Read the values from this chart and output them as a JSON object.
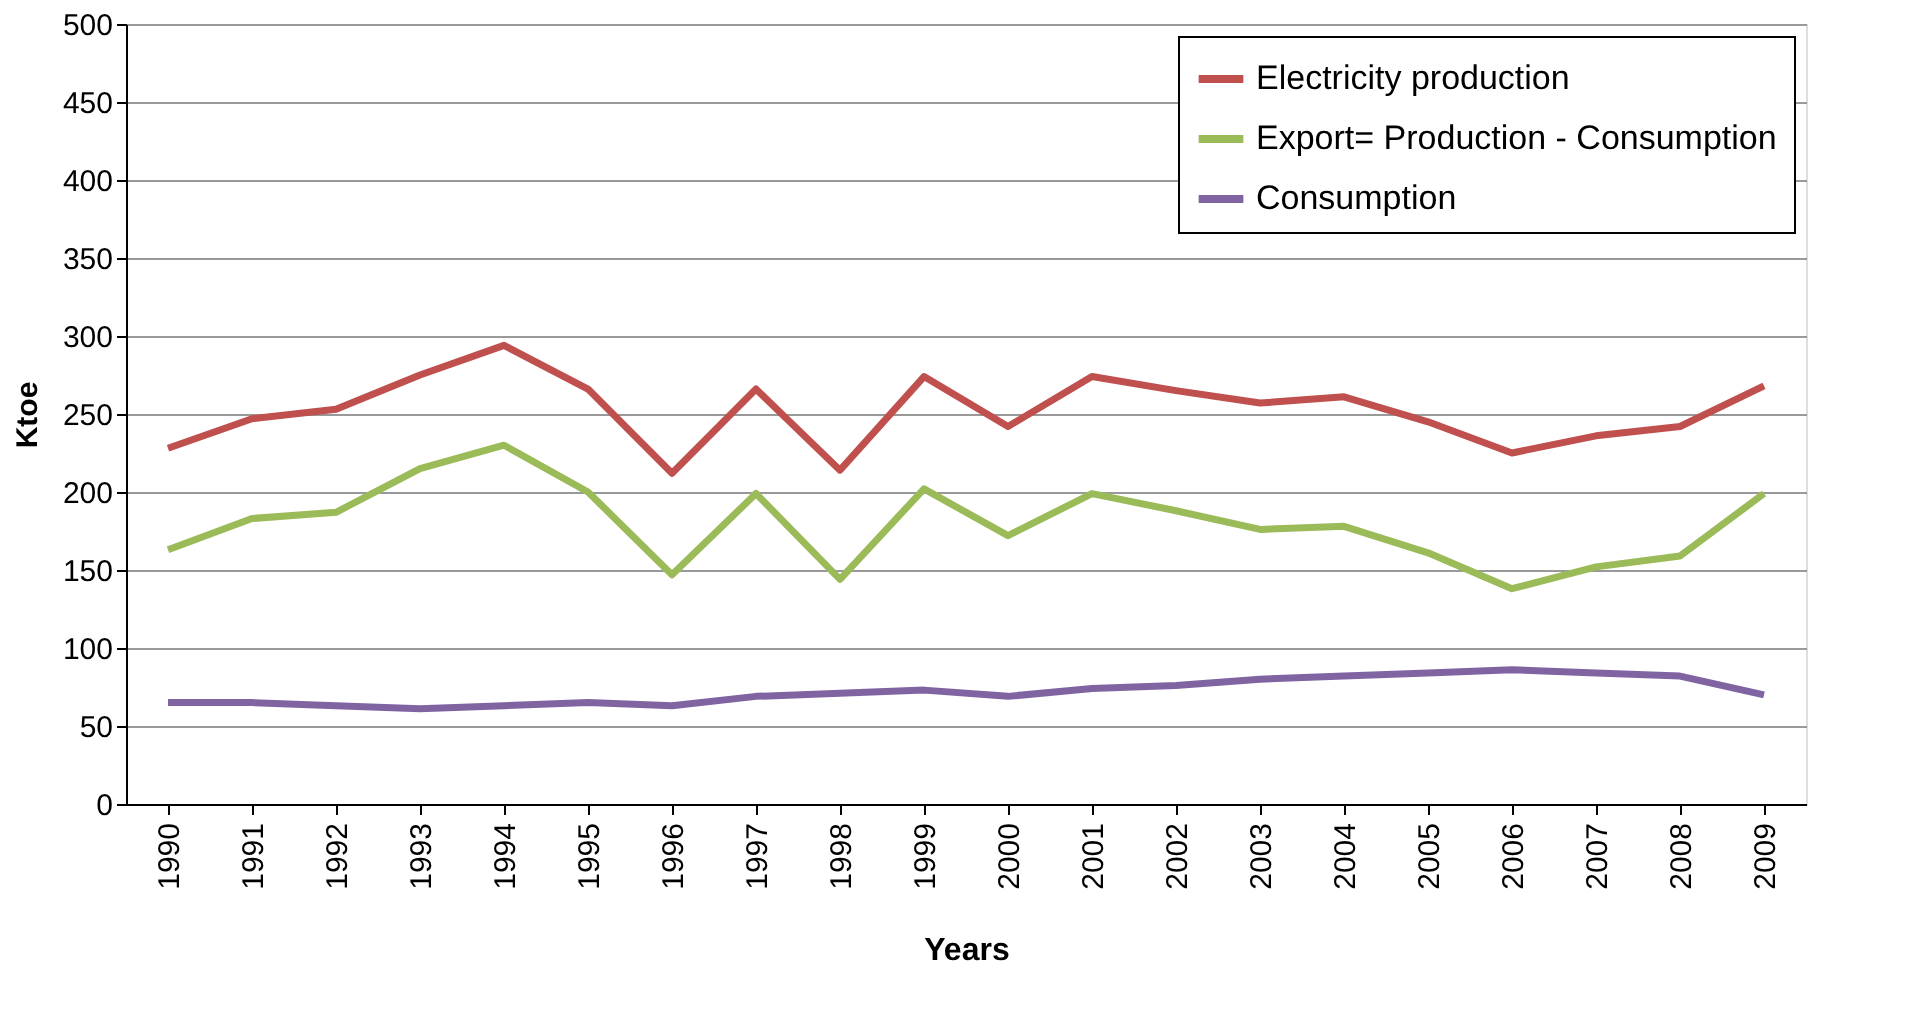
{
  "chart_data": {
    "type": "line",
    "xlabel": "Years",
    "ylabel": "Ktoe",
    "categories": [
      "1990",
      "1991",
      "1992",
      "1993",
      "1994",
      "1995",
      "1996",
      "1997",
      "1998",
      "1999",
      "2000",
      "2001",
      "2002",
      "2003",
      "2004",
      "2005",
      "2006",
      "2007",
      "2008",
      "2009"
    ],
    "series": [
      {
        "name": "Electricity production",
        "color": "#c0504d",
        "values": [
          228,
          247,
          253,
          275,
          294,
          266,
          212,
          266,
          214,
          274,
          242,
          274,
          265,
          257,
          261,
          245,
          225,
          236,
          242,
          268
        ]
      },
      {
        "name": "Export= Production - Consumption",
        "color": "#9bbb59",
        "values": [
          163,
          183,
          187,
          215,
          230,
          200,
          147,
          199,
          144,
          202,
          172,
          199,
          188,
          176,
          178,
          161,
          138,
          152,
          159,
          199
        ]
      },
      {
        "name": "Consumption",
        "color": "#8064a2",
        "values": [
          65,
          65,
          63,
          61,
          63,
          65,
          63,
          69,
          71,
          73,
          69,
          74,
          76,
          80,
          82,
          84,
          86,
          84,
          82,
          70
        ]
      }
    ],
    "ylim": [
      0,
      500
    ],
    "yticks": [
      0,
      50,
      100,
      150,
      200,
      250,
      300,
      350,
      400,
      450,
      500
    ],
    "grid": "y",
    "legend": "top right",
    "marker": "none",
    "line_style": "solid"
  }
}
